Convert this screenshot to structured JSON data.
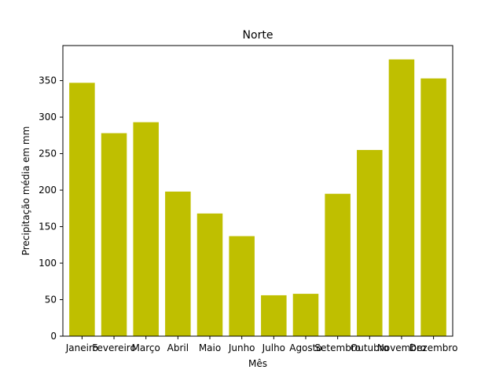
{
  "chart_data": {
    "type": "bar",
    "title": "Norte",
    "xlabel": "Mês",
    "ylabel": "Precipitação média em mm",
    "categories": [
      "Janeiro",
      "Fevereiro",
      "Março",
      "Abril",
      "Maio",
      "Junho",
      "Julho",
      "Agosto",
      "Setembro",
      "Outubro",
      "Novembro",
      "Dezembro"
    ],
    "values": [
      347,
      278,
      293,
      198,
      168,
      137,
      56,
      58,
      195,
      255,
      379,
      353
    ],
    "ylim": [
      0,
      398
    ],
    "yticks": [
      0,
      50,
      100,
      150,
      200,
      250,
      300,
      350
    ],
    "bar_color": "#bfbf00",
    "grid": false,
    "legend": "none"
  }
}
